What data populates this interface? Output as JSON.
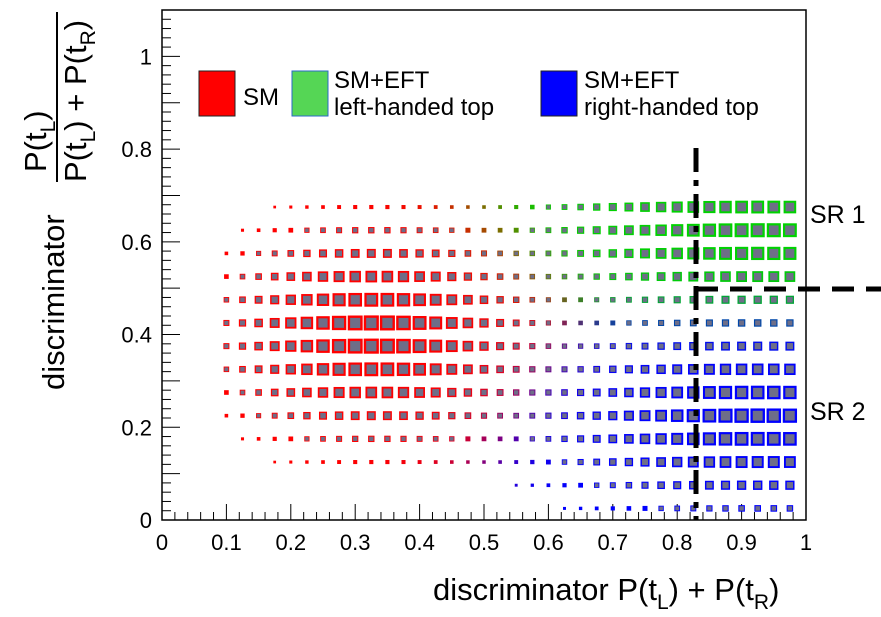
{
  "chart_data": {
    "type": "heatmap",
    "title": "",
    "x_axis": {
      "label_main": "discriminator P(t",
      "label_sub1": "L",
      "label_mid": ") + P(t",
      "label_sub2": "R",
      "label_end": ")",
      "range": [
        0,
        1
      ],
      "ticks": [
        "0",
        "0.1",
        "0.2",
        "0.3",
        "0.4",
        "0.5",
        "0.6",
        "0.7",
        "0.8",
        "0.9",
        "1"
      ]
    },
    "y_axis": {
      "label_word": "discriminator",
      "frac_num_a": "P(t",
      "frac_num_sub": "L",
      "frac_num_b": ")",
      "frac_den_a": "P(t",
      "frac_den_sub1": "L",
      "frac_den_b": ") + P(t",
      "frac_den_sub2": "R",
      "frac_den_c": ")",
      "range": [
        0,
        1.1
      ],
      "ticks": [
        "0",
        "0.2",
        "0.4",
        "0.6",
        "0.8",
        "1"
      ]
    },
    "legend": {
      "placement": "top",
      "entries": [
        {
          "label_line1": "SM",
          "label_line2": "",
          "color": "#ff0000"
        },
        {
          "label_line1": "SM+EFT",
          "label_line2": "left-handed top",
          "color": "#55d655"
        },
        {
          "label_line1": "SM+EFT",
          "label_line2": "right-handed top",
          "color": "#0000ff"
        }
      ]
    },
    "inner_fill_color": "#6e6e88",
    "cut_lines": {
      "x_cut": 0.83,
      "y_cut": 0.5
    },
    "regions": [
      {
        "label": "SR 1"
      },
      {
        "label": "SR 2"
      }
    ],
    "bin_size": 0.025,
    "columns_x": [
      0.1,
      0.125,
      0.15,
      0.175,
      0.2,
      0.225,
      0.25,
      0.275,
      0.3,
      0.325,
      0.35,
      0.375,
      0.4,
      0.425,
      0.45,
      0.475,
      0.5,
      0.525,
      0.55,
      0.575,
      0.6,
      0.625,
      0.65,
      0.675,
      0.7,
      0.725,
      0.75,
      0.775,
      0.8,
      0.825,
      0.85,
      0.875,
      0.9,
      0.925,
      0.95,
      0.975
    ],
    "rows_y": [
      0.025,
      0.075,
      0.125,
      0.175,
      0.225,
      0.275,
      0.325,
      0.375,
      0.425,
      0.475,
      0.525,
      0.575,
      0.625,
      0.675
    ],
    "distribution": {
      "sm_peak": [
        0.33,
        0.4
      ],
      "left_handed_peak": [
        0.93,
        0.62
      ],
      "right_handed_peak": [
        0.93,
        0.22
      ]
    }
  }
}
